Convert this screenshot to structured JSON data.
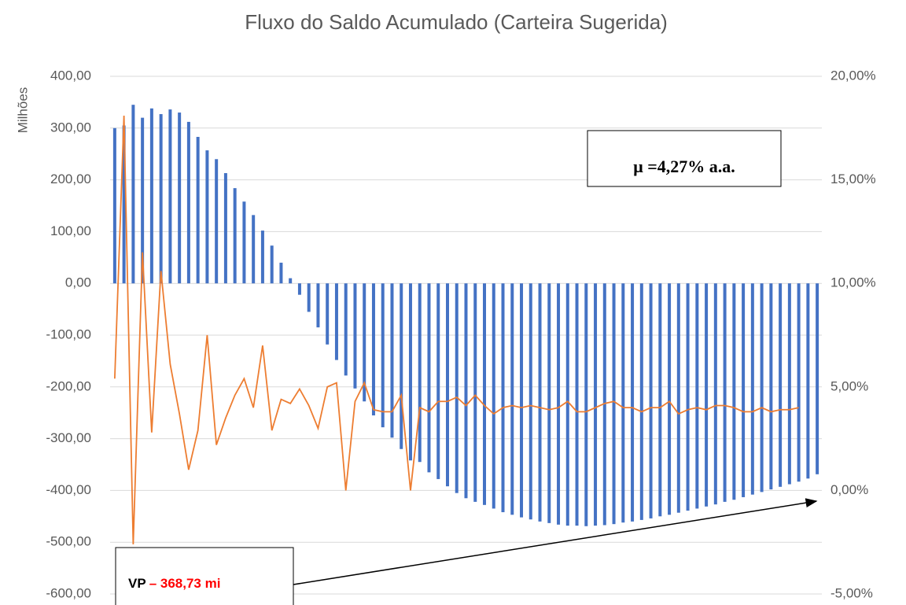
{
  "chart_data": {
    "type": "combo",
    "title": "Fluxo do Saldo Acumulado (Carteira Sugerida)",
    "y_label": "Milhões",
    "ylim": [
      -600,
      400
    ],
    "yticks": [
      {
        "value": -600,
        "label": "-600,00"
      },
      {
        "value": -500,
        "label": "-500,00"
      },
      {
        "value": -400,
        "label": "-400,00"
      },
      {
        "value": -300,
        "label": "-300,00"
      },
      {
        "value": -200,
        "label": "-200,00"
      },
      {
        "value": -100,
        "label": "-100,00"
      },
      {
        "value": 0,
        "label": "0,00"
      },
      {
        "value": 100,
        "label": "100,00"
      },
      {
        "value": 200,
        "label": "200,00"
      },
      {
        "value": 300,
        "label": "300,00"
      },
      {
        "value": 400,
        "label": "400,00"
      }
    ],
    "y2lim": [
      -5,
      20
    ],
    "y2ticks": [
      {
        "value": -5,
        "label": "-5,00%"
      },
      {
        "value": 0,
        "label": "0,00%"
      },
      {
        "value": 5,
        "label": "5,00%"
      },
      {
        "value": 10,
        "label": "10,00%"
      },
      {
        "value": 15,
        "label": "15,00%"
      },
      {
        "value": 20,
        "label": "20,00%"
      }
    ],
    "grid": true,
    "series": [
      {
        "type": "bar",
        "color": "#4472c4",
        "values": [
          300,
          305,
          345,
          320,
          338,
          327,
          336,
          330,
          312,
          283,
          257,
          240,
          213,
          184,
          158,
          132,
          102,
          73,
          40,
          10,
          -22,
          -55,
          -85,
          -118,
          -148,
          -178,
          -203,
          -228,
          -255,
          -278,
          -298,
          -320,
          -342,
          -345,
          -365,
          -378,
          -392,
          -405,
          -415,
          -422,
          -428,
          -435,
          -442,
          -447,
          -452,
          -456,
          -460,
          -463,
          -466,
          -468,
          -468,
          -469,
          -468,
          -467,
          -465,
          -462,
          -460,
          -457,
          -454,
          -450,
          -447,
          -443,
          -439,
          -435,
          -431,
          -427,
          -422,
          -418,
          -413,
          -408,
          -403,
          -398,
          -393,
          -388,
          -383,
          -377,
          -368.73
        ]
      },
      {
        "type": "line",
        "color": "#ed7d31",
        "axis": "y2",
        "values": [
          5.4,
          18.1,
          -2.6,
          11.5,
          2.8,
          10.6,
          6.1,
          3.7,
          1.0,
          2.9,
          7.5,
          2.2,
          3.5,
          4.6,
          5.4,
          4.0,
          7.0,
          2.9,
          4.4,
          4.2,
          4.9,
          4.1,
          3.0,
          5.0,
          5.2,
          0.0,
          4.3,
          5.2,
          3.9,
          3.8,
          3.8,
          4.6,
          0.0,
          4.0,
          3.8,
          4.3,
          4.3,
          4.5,
          4.1,
          4.6,
          4.1,
          3.7,
          4.0,
          4.1,
          4.0,
          4.1,
          4.0,
          3.9,
          4.0,
          4.3,
          3.8,
          3.8,
          4.0,
          4.2,
          4.3,
          4.0,
          4.0,
          3.8,
          4.0,
          4.0,
          4.3,
          3.7,
          3.9,
          4.0,
          3.9,
          4.1,
          4.1,
          4.0,
          3.8,
          3.8,
          4.0,
          3.8,
          3.9,
          3.9,
          4.0,
          null,
          null
        ]
      }
    ],
    "annotations": [
      "μ =4,27% a.a.",
      "VP",
      "– 368,73 mi"
    ]
  }
}
